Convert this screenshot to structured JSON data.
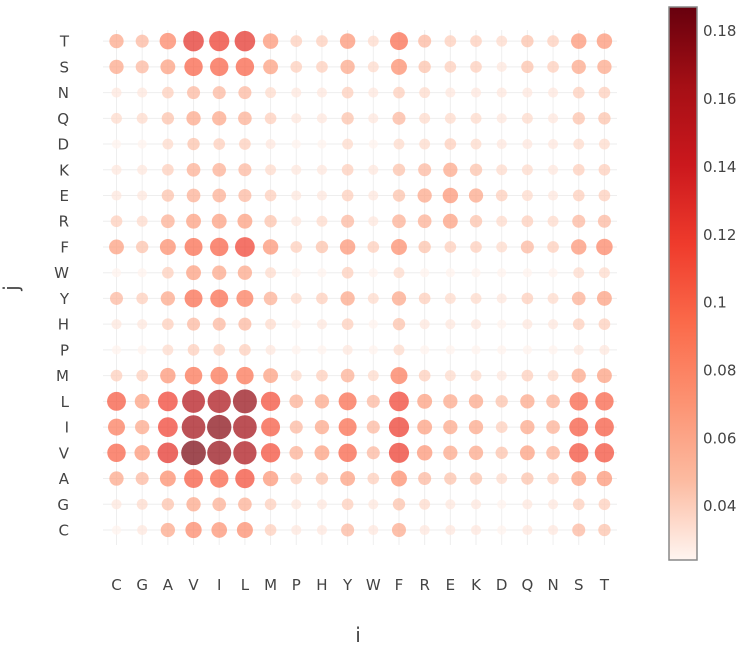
{
  "chart_data": {
    "type": "bubble-heatmap",
    "xlabel": "i",
    "ylabel": "j",
    "x_categories": [
      "C",
      "G",
      "A",
      "V",
      "I",
      "L",
      "M",
      "P",
      "H",
      "Y",
      "W",
      "F",
      "R",
      "E",
      "K",
      "D",
      "Q",
      "N",
      "S",
      "T"
    ],
    "y_categories": [
      "C",
      "G",
      "A",
      "V",
      "I",
      "L",
      "M",
      "P",
      "H",
      "Y",
      "W",
      "F",
      "R",
      "E",
      "K",
      "D",
      "Q",
      "N",
      "S",
      "T"
    ],
    "colorscale": {
      "name": "Reds",
      "min": 0.024,
      "max": 0.187,
      "ticks": [
        0.04,
        0.06,
        0.08,
        0.1,
        0.12,
        0.14,
        0.16,
        0.18
      ],
      "tick_labels": [
        "0.04",
        "0.06",
        "0.08",
        "0.1",
        "0.12",
        "0.14",
        "0.16",
        "0.18"
      ],
      "stops": [
        "#fff5f0",
        "#fcbba1",
        "#fc9272",
        "#fb6a4a",
        "#ef3b2c",
        "#cb181d",
        "#a50f15",
        "#67000d"
      ]
    },
    "matrix_rows_by_j": {
      "C": [
        0.025,
        0.03,
        0.06,
        0.078,
        0.072,
        0.076,
        0.04,
        0.03,
        0.03,
        0.05,
        0.03,
        0.058,
        0.03,
        0.03,
        0.03,
        0.025,
        0.03,
        0.03,
        0.05,
        0.045
      ],
      "G": [
        0.03,
        0.035,
        0.045,
        0.06,
        0.055,
        0.055,
        0.04,
        0.03,
        0.03,
        0.04,
        0.03,
        0.045,
        0.035,
        0.03,
        0.03,
        0.025,
        0.03,
        0.03,
        0.04,
        0.04
      ],
      "A": [
        0.06,
        0.05,
        0.075,
        0.105,
        0.1,
        0.11,
        0.07,
        0.04,
        0.045,
        0.065,
        0.04,
        0.075,
        0.05,
        0.045,
        0.045,
        0.035,
        0.045,
        0.04,
        0.065,
        0.07
      ],
      "V": [
        0.1,
        0.07,
        0.125,
        0.18,
        0.17,
        0.16,
        0.11,
        0.055,
        0.065,
        0.1,
        0.05,
        0.12,
        0.07,
        0.06,
        0.06,
        0.045,
        0.065,
        0.055,
        0.11,
        0.11
      ],
      "I": [
        0.085,
        0.06,
        0.115,
        0.165,
        0.175,
        0.165,
        0.105,
        0.05,
        0.06,
        0.095,
        0.05,
        0.12,
        0.065,
        0.06,
        0.06,
        0.04,
        0.06,
        0.055,
        0.105,
        0.105
      ],
      "L": [
        0.105,
        0.065,
        0.115,
        0.155,
        0.16,
        0.17,
        0.11,
        0.055,
        0.06,
        0.095,
        0.05,
        0.115,
        0.065,
        0.06,
        0.06,
        0.045,
        0.06,
        0.055,
        0.1,
        0.1
      ],
      "M": [
        0.04,
        0.04,
        0.07,
        0.09,
        0.09,
        0.09,
        0.065,
        0.035,
        0.04,
        0.055,
        0.035,
        0.085,
        0.04,
        0.035,
        0.035,
        0.03,
        0.04,
        0.035,
        0.06,
        0.065
      ],
      "P": [
        0.025,
        0.025,
        0.035,
        0.04,
        0.04,
        0.04,
        0.03,
        0.025,
        0.025,
        0.03,
        0.025,
        0.035,
        0.025,
        0.025,
        0.025,
        0.025,
        0.025,
        0.025,
        0.03,
        0.03
      ],
      "H": [
        0.03,
        0.03,
        0.04,
        0.05,
        0.05,
        0.05,
        0.035,
        0.025,
        0.03,
        0.04,
        0.025,
        0.045,
        0.03,
        0.03,
        0.03,
        0.025,
        0.03,
        0.03,
        0.04,
        0.04
      ],
      "Y": [
        0.05,
        0.04,
        0.06,
        0.095,
        0.095,
        0.085,
        0.055,
        0.035,
        0.04,
        0.06,
        0.035,
        0.06,
        0.04,
        0.035,
        0.035,
        0.03,
        0.04,
        0.035,
        0.055,
        0.065
      ],
      "W": [
        0.025,
        0.025,
        0.04,
        0.065,
        0.06,
        0.06,
        0.035,
        0.025,
        0.025,
        0.04,
        0.025,
        0.035,
        0.025,
        0.025,
        0.025,
        0.025,
        0.025,
        0.025,
        0.035,
        0.035
      ],
      "F": [
        0.065,
        0.045,
        0.075,
        0.095,
        0.1,
        0.115,
        0.07,
        0.04,
        0.045,
        0.07,
        0.04,
        0.075,
        0.045,
        0.04,
        0.04,
        0.035,
        0.05,
        0.04,
        0.07,
        0.08
      ],
      "R": [
        0.04,
        0.035,
        0.055,
        0.065,
        0.065,
        0.065,
        0.045,
        0.03,
        0.035,
        0.05,
        0.03,
        0.055,
        0.055,
        0.065,
        0.045,
        0.035,
        0.04,
        0.035,
        0.05,
        0.05
      ],
      "E": [
        0.03,
        0.03,
        0.045,
        0.055,
        0.055,
        0.05,
        0.04,
        0.03,
        0.03,
        0.04,
        0.03,
        0.045,
        0.06,
        0.07,
        0.06,
        0.04,
        0.035,
        0.03,
        0.04,
        0.04
      ],
      "K": [
        0.03,
        0.03,
        0.04,
        0.055,
        0.055,
        0.05,
        0.035,
        0.03,
        0.03,
        0.04,
        0.03,
        0.045,
        0.05,
        0.06,
        0.045,
        0.035,
        0.035,
        0.03,
        0.04,
        0.04
      ],
      "D": [
        0.025,
        0.025,
        0.035,
        0.045,
        0.04,
        0.04,
        0.03,
        0.025,
        0.025,
        0.035,
        0.025,
        0.035,
        0.035,
        0.04,
        0.035,
        0.03,
        0.03,
        0.03,
        0.035,
        0.035
      ],
      "Q": [
        0.035,
        0.035,
        0.045,
        0.06,
        0.06,
        0.055,
        0.04,
        0.03,
        0.03,
        0.045,
        0.03,
        0.05,
        0.035,
        0.035,
        0.035,
        0.03,
        0.035,
        0.03,
        0.045,
        0.045
      ],
      "N": [
        0.03,
        0.03,
        0.04,
        0.05,
        0.05,
        0.05,
        0.035,
        0.03,
        0.03,
        0.04,
        0.03,
        0.04,
        0.035,
        0.03,
        0.03,
        0.03,
        0.03,
        0.03,
        0.04,
        0.04
      ],
      "S": [
        0.06,
        0.05,
        0.065,
        0.1,
        0.1,
        0.1,
        0.065,
        0.04,
        0.04,
        0.06,
        0.035,
        0.075,
        0.045,
        0.04,
        0.04,
        0.03,
        0.045,
        0.04,
        0.06,
        0.06
      ],
      "T": [
        0.06,
        0.05,
        0.08,
        0.125,
        0.12,
        0.125,
        0.07,
        0.04,
        0.04,
        0.07,
        0.035,
        0.095,
        0.05,
        0.04,
        0.04,
        0.035,
        0.045,
        0.04,
        0.07,
        0.07
      ]
    }
  }
}
